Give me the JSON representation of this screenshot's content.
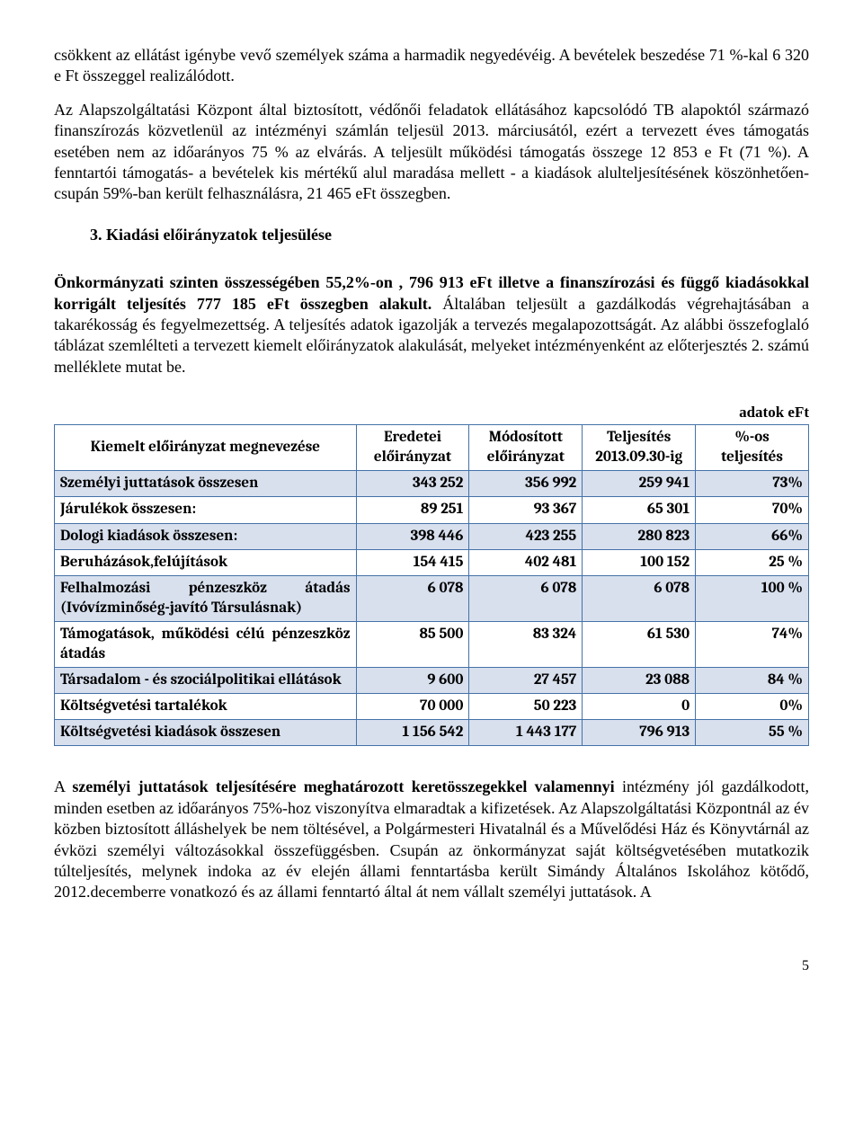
{
  "para1": "csökkent az ellátást igénybe vevő személyek száma a harmadik negyedévéig. A bevételek beszedése 71 %-kal 6 320 e Ft összeggel realizálódott.",
  "para2": "Az Alapszolgáltatási Központ által biztosított, védőnői feladatok ellátásához kapcsolódó TB alapoktól származó finanszírozás közvetlenül az intézményi számlán teljesül 2013. márciusától, ezért a tervezett éves támogatás esetében nem az időarányos 75 %  az elvárás. A teljesült működési támogatás összege 12 853 e Ft (71 %). A fenntartói támogatás- a bevételek kis mértékű alul maradása mellett - a kiadások alulteljesítésének köszönhetően- csupán 59%-ban került felhasználásra, 21 465 eFt összegben.",
  "heading3": "3. Kiadási előirányzatok teljesülése",
  "para3_a": "Önkormányzati szinten összességében 55,2%-on , 796 913 eFt illetve a finanszírozási és függő kiadásokkal korrigált teljesítés 777 185 eFt összegben alakult.",
  "para3_b": " Általában teljesült a gazdálkodás végrehajtásában a takarékosság és fegyelmezettség. A teljesítés adatok igazolják a tervezés megalapozottságát. Az alábbi összefoglaló táblázat szemlélteti a tervezett kiemelt előirányzatok alakulását, melyeket intézményenként az előterjesztés 2. számú melléklete mutat be.",
  "table": {
    "caption": "adatok eFt",
    "headers": {
      "name": "Kiemelt előirányzat megnevezése",
      "c1a": "Eredetei",
      "c1b": "előirányzat",
      "c2a": "Módosított",
      "c2b": "előirányzat",
      "c3a": "Teljesítés",
      "c3b": "2013.09.30-ig",
      "c4a": "%-os",
      "c4b": "teljesítés"
    },
    "rows": [
      {
        "shaded": true,
        "name": "Személyi juttatások összesen",
        "v": [
          "343 252",
          "356 992",
          "259 941",
          "73%"
        ]
      },
      {
        "shaded": false,
        "name": "Járulékok összesen:",
        "v": [
          "89 251",
          "93 367",
          "65 301",
          "70%"
        ]
      },
      {
        "shaded": true,
        "name": "Dologi kiadások összesen:",
        "v": [
          "398 446",
          "423 255",
          "280 823",
          "66%"
        ]
      },
      {
        "shaded": false,
        "name": "Beruházások,felújítások",
        "v": [
          "154 415",
          "402 481",
          "100 152",
          "25 %"
        ]
      },
      {
        "shaded": true,
        "name": "Felhalmozási pénzeszköz átadás (Ivóvízminőség-javító Társulásnak)",
        "v": [
          "6 078",
          "6 078",
          "6 078",
          "100 %"
        ]
      },
      {
        "shaded": false,
        "name": "Támogatások, működési célú pénzeszköz átadás",
        "v": [
          "85 500",
          "83 324",
          "61 530",
          "74%"
        ]
      },
      {
        "shaded": true,
        "name": "Társadalom - és szociálpolitikai ellátások",
        "v": [
          "9 600",
          "27 457",
          "23 088",
          "84 %"
        ]
      },
      {
        "shaded": false,
        "name": "Költségvetési tartalékok",
        "v": [
          "70 000",
          "50 223",
          "0",
          "0%"
        ]
      },
      {
        "shaded": true,
        "name": "Költségvetési kiadások összesen",
        "v": [
          "1 156 542",
          "1 443 177",
          "796 913",
          "55 %"
        ]
      }
    ],
    "colors": {
      "border": "#4472a8",
      "shaded_bg": "#d8e0ee",
      "background": "#ffffff"
    }
  },
  "para4_a": "A ",
  "para4_b": "személyi juttatások teljesítésére meghatározott keretösszegekkel valamennyi",
  "para4_c": " intézmény jól gazdálkodott, minden esetben az időarányos 75%-hoz viszonyítva elmaradtak a kifizetések. Az Alapszolgáltatási Központnál az év közben biztosított álláshelyek be nem töltésével, a Polgármesteri Hivatalnál és a Művelődési Ház és Könyvtárnál az évközi személyi változásokkal összefüggésben. Csupán az önkormányzat saját költségvetésében mutatkozik túlteljesítés, melynek indoka az év elején állami fenntartásba került Simándy Általános Iskolához kötődő, 2012.decemberre vonatkozó és az állami fenntartó által át nem vállalt személyi juttatások. A",
  "pagenum": "5"
}
